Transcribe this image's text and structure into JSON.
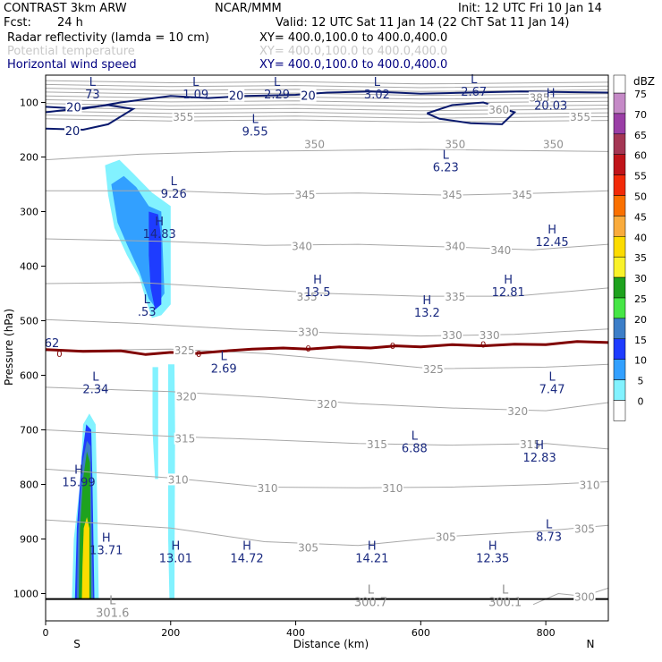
{
  "header": {
    "model": "CONTRAST   3km ARW",
    "org": "NCAR/MMM",
    "init": "Init: 12 UTC Fri 10 Jan 14",
    "fcst_label": "Fcst:",
    "fcst_value": "24 h",
    "valid": "Valid: 12 UTC Sat 11 Jan 14 (22 ChT Sat 11 Jan 14)",
    "fields": [
      {
        "name": "Radar reflectivity (lamda = 10 cm)",
        "xy": "XY= 400.0,100.0 to 400.0,400.0",
        "color": "#000000"
      },
      {
        "name": "Potential temperature",
        "xy": "XY= 400.0,100.0 to 400.0,400.0",
        "color": "#c8c8c8"
      },
      {
        "name": "Horizontal wind speed",
        "xy": "XY= 400.0,100.0 to 400.0,400.0",
        "color": "#000080"
      }
    ]
  },
  "colors": {
    "theta": "#a8a8a8",
    "wind": "#0a1a6e",
    "freezing": "#800000",
    "label_blue": "#1a2a80",
    "label_gray": "#909090"
  },
  "chart_data": {
    "type": "heatmap",
    "xlabel": "Distance (km)",
    "ylabel": "Pressure (hPa)",
    "xlim": [
      0,
      900
    ],
    "ylim": [
      1050,
      50
    ],
    "x_ticks": [
      "0",
      "200",
      "400",
      "600",
      "800"
    ],
    "y_ticks": [
      "100",
      "200",
      "300",
      "400",
      "500",
      "600",
      "700",
      "800",
      "900",
      "1000"
    ],
    "x_end_labels": {
      "left": "S",
      "right": "N"
    },
    "colorbar": {
      "unit": "dBZ",
      "levels": [
        "75",
        "70",
        "65",
        "60",
        "55",
        "50",
        "45",
        "40",
        "35",
        "30",
        "25",
        "20",
        "15",
        "10",
        "5",
        "0"
      ],
      "colors": [
        "#c58ac7",
        "#9a3ea6",
        "#a43654",
        "#c0141a",
        "#f22a08",
        "#fa7000",
        "#f9ab3c",
        "#fcdc00",
        "#f9f22a",
        "#1ea21e",
        "#46e646",
        "#3c7ec8",
        "#1e3cff",
        "#32a0ff",
        "#82f2ff",
        "#ffffff"
      ]
    },
    "theta_labels": [
      {
        "text": "385",
        "x": 790,
        "p": 90
      },
      {
        "text": "360",
        "x": 725,
        "p": 112
      },
      {
        "text": "355",
        "x": 855,
        "p": 125
      },
      {
        "text": "355",
        "x": 220,
        "p": 125
      },
      {
        "text": "350",
        "x": 430,
        "p": 175
      },
      {
        "text": "350",
        "x": 655,
        "p": 175
      },
      {
        "text": "350",
        "x": 812,
        "p": 175
      },
      {
        "text": "345",
        "x": 415,
        "p": 268
      },
      {
        "text": "345",
        "x": 650,
        "p": 268
      },
      {
        "text": "345",
        "x": 762,
        "p": 268
      },
      {
        "text": "340",
        "x": 410,
        "p": 362
      },
      {
        "text": "340",
        "x": 655,
        "p": 362
      },
      {
        "text": "340",
        "x": 728,
        "p": 370
      },
      {
        "text": "335",
        "x": 418,
        "p": 455
      },
      {
        "text": "335",
        "x": 655,
        "p": 455
      },
      {
        "text": "330",
        "x": 420,
        "p": 520
      },
      {
        "text": "330",
        "x": 650,
        "p": 525
      },
      {
        "text": "330",
        "x": 710,
        "p": 525
      },
      {
        "text": "325",
        "x": 222,
        "p": 553
      },
      {
        "text": "325",
        "x": 620,
        "p": 588
      },
      {
        "text": "320",
        "x": 225,
        "p": 638
      },
      {
        "text": "320",
        "x": 450,
        "p": 652
      },
      {
        "text": "320",
        "x": 755,
        "p": 665
      },
      {
        "text": "315",
        "x": 223,
        "p": 715
      },
      {
        "text": "315",
        "x": 530,
        "p": 725
      },
      {
        "text": "315",
        "x": 775,
        "p": 725
      },
      {
        "text": "310",
        "x": 212,
        "p": 790
      },
      {
        "text": "310",
        "x": 355,
        "p": 806
      },
      {
        "text": "310",
        "x": 555,
        "p": 806
      },
      {
        "text": "310",
        "x": 870,
        "p": 800
      },
      {
        "text": "305",
        "x": 420,
        "p": 915
      },
      {
        "text": "305",
        "x": 640,
        "p": 895
      },
      {
        "text": "305",
        "x": 862,
        "p": 880
      },
      {
        "text": "300",
        "x": 862,
        "p": 1005
      }
    ],
    "extrema": [
      {
        "mark": "L",
        "value": "73",
        "x": 75,
        "p": 70,
        "color": "blue"
      },
      {
        "mark": "L",
        "value": "1.09",
        "x": 240,
        "p": 70,
        "color": "blue"
      },
      {
        "mark": "L",
        "value": "2.29",
        "x": 370,
        "p": 70,
        "color": "blue"
      },
      {
        "mark": "L",
        "value": "3.02",
        "x": 530,
        "p": 70,
        "color": "blue"
      },
      {
        "mark": "L",
        "value": "2.67",
        "x": 685,
        "p": 65,
        "color": "blue"
      },
      {
        "mark": "H",
        "value": "20.03",
        "x": 808,
        "p": 90,
        "color": "blue"
      },
      {
        "mark": "L",
        "value": "9.55",
        "x": 335,
        "p": 138,
        "color": "blue"
      },
      {
        "mark": "L",
        "value": "6.23",
        "x": 640,
        "p": 203,
        "color": "blue"
      },
      {
        "mark": "L",
        "value": "9.26",
        "x": 205,
        "p": 252,
        "color": "blue"
      },
      {
        "mark": "H",
        "value": "14.83",
        "x": 182,
        "p": 325,
        "color": "blue"
      },
      {
        "mark": "H",
        "value": "12.45",
        "x": 810,
        "p": 340,
        "color": "blue"
      },
      {
        "mark": "H",
        "value": "13.5",
        "x": 435,
        "p": 432,
        "color": "blue"
      },
      {
        "mark": "H",
        "value": "12.81",
        "x": 740,
        "p": 432,
        "color": "blue"
      },
      {
        "mark": "H",
        "value": "13.2",
        "x": 610,
        "p": 470,
        "color": "blue"
      },
      {
        "mark": "L",
        "value": ".53",
        "x": 162,
        "p": 468,
        "color": "blue"
      },
      {
        "mark": "L",
        "value": "2.69",
        "x": 285,
        "p": 572,
        "color": "blue"
      },
      {
        "mark": "L",
        "value": "2.34",
        "x": 80,
        "p": 610,
        "color": "blue"
      },
      {
        "mark": "L",
        "value": "7.47",
        "x": 810,
        "p": 610,
        "color": "blue"
      },
      {
        "mark": "L",
        "value": "6.88",
        "x": 590,
        "p": 718,
        "color": "blue"
      },
      {
        "mark": "H",
        "value": "12.83",
        "x": 790,
        "p": 735,
        "color": "blue"
      },
      {
        "mark": "H",
        "value": "15.99",
        "x": 53,
        "p": 780,
        "color": "blue"
      },
      {
        "mark": "L",
        "value": "8.73",
        "x": 805,
        "p": 880,
        "color": "blue"
      },
      {
        "mark": "H",
        "value": "13.71",
        "x": 97,
        "p": 905,
        "color": "blue"
      },
      {
        "mark": "H",
        "value": "13.01",
        "x": 208,
        "p": 920,
        "color": "blue"
      },
      {
        "mark": "H",
        "value": "14.72",
        "x": 322,
        "p": 920,
        "color": "blue"
      },
      {
        "mark": "H",
        "value": "14.21",
        "x": 522,
        "p": 920,
        "color": "blue"
      },
      {
        "mark": "H",
        "value": "12.35",
        "x": 715,
        "p": 920,
        "color": "blue"
      },
      {
        "mark": "L",
        "value": "300.7",
        "x": 520,
        "p": 1000,
        "color": "gray"
      },
      {
        "mark": "L",
        "value": "300.1",
        "x": 735,
        "p": 1000,
        "color": "gray"
      },
      {
        "mark": "L",
        "value": "301.6",
        "x": 107,
        "p": 1020,
        "color": "gray"
      }
    ],
    "wind_labels": [
      {
        "text": "20",
        "x": 45,
        "p": 108
      },
      {
        "text": "20",
        "x": 305,
        "p": 87
      },
      {
        "text": "20",
        "x": 420,
        "p": 87
      },
      {
        "text": "20",
        "x": 43,
        "p": 152
      }
    ],
    "edge_labels": [
      {
        "text": "62",
        "x": 10,
        "p": 540
      }
    ],
    "freezing_labels": [
      {
        "text": "0",
        "x": 22,
        "p": 560
      },
      {
        "text": "0",
        "x": 245,
        "p": 560
      },
      {
        "text": "0",
        "x": 420,
        "p": 550
      },
      {
        "text": "0",
        "x": 555,
        "p": 545
      },
      {
        "text": "0",
        "x": 700,
        "p": 543
      }
    ],
    "freezing_line": [
      [
        0,
        553
      ],
      [
        60,
        556
      ],
      [
        120,
        555
      ],
      [
        160,
        562
      ],
      [
        200,
        558
      ],
      [
        240,
        560
      ],
      [
        280,
        556
      ],
      [
        330,
        552
      ],
      [
        380,
        550
      ],
      [
        420,
        552
      ],
      [
        470,
        548
      ],
      [
        520,
        550
      ],
      [
        560,
        546
      ],
      [
        600,
        548
      ],
      [
        650,
        544
      ],
      [
        700,
        546
      ],
      [
        750,
        543
      ],
      [
        800,
        544
      ],
      [
        850,
        538
      ],
      [
        900,
        540
      ]
    ],
    "reflectivity_cells": [
      {
        "dbz": 5,
        "pts": [
          [
            95,
            215
          ],
          [
            118,
            205
          ],
          [
            140,
            230
          ],
          [
            170,
            265
          ],
          [
            200,
            290
          ],
          [
            200,
            470
          ],
          [
            185,
            490
          ],
          [
            170,
            495
          ],
          [
            160,
            460
          ],
          [
            150,
            420
          ],
          [
            130,
            380
          ],
          [
            110,
            330
          ],
          [
            100,
            270
          ]
        ]
      },
      {
        "dbz": 10,
        "pts": [
          [
            105,
            250
          ],
          [
            125,
            235
          ],
          [
            145,
            255
          ],
          [
            165,
            290
          ],
          [
            185,
            300
          ],
          [
            190,
            450
          ],
          [
            175,
            475
          ],
          [
            165,
            460
          ],
          [
            150,
            410
          ],
          [
            130,
            360
          ],
          [
            115,
            320
          ]
        ]
      },
      {
        "dbz": 15,
        "pts": [
          [
            165,
            300
          ],
          [
            180,
            305
          ],
          [
            185,
            350
          ],
          [
            185,
            470
          ],
          [
            175,
            480
          ],
          [
            168,
            440
          ],
          [
            165,
            380
          ]
        ]
      },
      {
        "dbz": 5,
        "pts": [
          [
            171,
            585
          ],
          [
            180,
            585
          ],
          [
            180,
            790
          ],
          [
            175,
            790
          ],
          [
            171,
            700
          ]
        ]
      },
      {
        "dbz": 5,
        "pts": [
          [
            196,
            580
          ],
          [
            206,
            580
          ],
          [
            207,
            700
          ],
          [
            206,
            1010
          ],
          [
            198,
            1010
          ],
          [
            196,
            900
          ]
        ]
      },
      {
        "dbz": 5,
        "pts": [
          [
            60,
            690
          ],
          [
            70,
            670
          ],
          [
            80,
            690
          ],
          [
            82,
            800
          ],
          [
            85,
            1010
          ],
          [
            42,
            1010
          ],
          [
            45,
            900
          ],
          [
            55,
            800
          ]
        ]
      },
      {
        "dbz": 15,
        "pts": [
          [
            58,
            750
          ],
          [
            65,
            690
          ],
          [
            73,
            700
          ],
          [
            75,
            800
          ],
          [
            78,
            1010
          ],
          [
            47,
            1010
          ],
          [
            50,
            880
          ],
          [
            55,
            800
          ]
        ]
      },
      {
        "dbz": 20,
        "pts": [
          [
            59,
            760
          ],
          [
            66,
            720
          ],
          [
            72,
            730
          ],
          [
            74,
            900
          ],
          [
            76,
            1010
          ],
          [
            50,
            1010
          ],
          [
            52,
            890
          ]
        ]
      },
      {
        "dbz": 30,
        "pts": [
          [
            60,
            790
          ],
          [
            66,
            740
          ],
          [
            71,
            760
          ],
          [
            72,
            900
          ],
          [
            73,
            1010
          ],
          [
            53,
            1010
          ],
          [
            55,
            880
          ]
        ]
      },
      {
        "dbz": 40,
        "pts": [
          [
            61,
            880
          ],
          [
            66,
            860
          ],
          [
            70,
            880
          ],
          [
            70,
            1010
          ],
          [
            58,
            1010
          ],
          [
            59,
            950
          ]
        ]
      }
    ]
  }
}
